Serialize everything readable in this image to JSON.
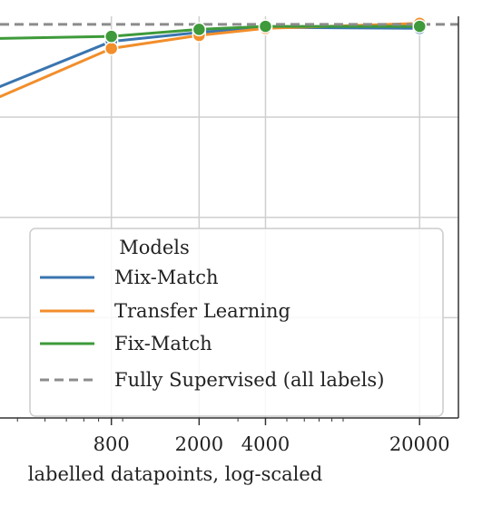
{
  "chart_data": {
    "type": "line",
    "xscale": "log",
    "xlabel": "labelled datapoints, log-scaled",
    "xticks": [
      800,
      2000,
      4000,
      20000
    ],
    "xtick_labels": [
      "800",
      "2000",
      "4000",
      "20000"
    ],
    "xlim": [
      250,
      30000
    ],
    "ylim": [
      0.6,
      1.0
    ],
    "grid": true,
    "legend": {
      "title": "Models",
      "placement": "bottom-right"
    },
    "series": [
      {
        "name": "Mix-Match",
        "color": "#3a75b0",
        "style": "solid",
        "markers": true,
        "x": [
          250,
          800,
          2000,
          4000,
          20000
        ],
        "y": [
          0.93,
          0.975,
          0.984,
          0.989,
          0.988
        ]
      },
      {
        "name": "Transfer Learning",
        "color": "#f28e2b",
        "style": "solid",
        "markers": true,
        "x": [
          250,
          800,
          2000,
          4000,
          20000
        ],
        "y": [
          0.92,
          0.968,
          0.981,
          0.988,
          0.993
        ]
      },
      {
        "name": "Fix-Match",
        "color": "#3e9a3a",
        "style": "solid",
        "markers": true,
        "x": [
          250,
          800,
          2000,
          4000,
          20000
        ],
        "y": [
          0.978,
          0.98,
          0.987,
          0.99,
          0.99
        ]
      },
      {
        "name": "Fully Supervised (all labels)",
        "color": "#8c8c8c",
        "style": "dashed",
        "markers": false,
        "x": [
          250,
          30000
        ],
        "y": [
          0.992,
          0.992
        ]
      }
    ]
  }
}
